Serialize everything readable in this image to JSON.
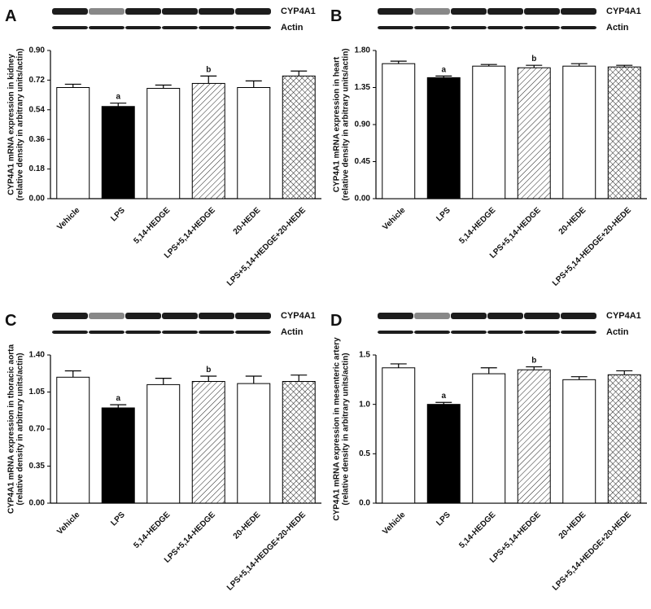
{
  "chart_data": [
    {
      "type": "bar",
      "panel_label": "A",
      "blot_labels": [
        "CYP4A1",
        "Actin"
      ],
      "y_label": [
        "CYP4A1 mRNA expression in kidney",
        "(relative density in arbitrary units/actin)"
      ],
      "categories": [
        "Vehicle",
        "LPS",
        "5,14-HEDGE",
        "LPS+5,14-HEDGE",
        "20-HEDE",
        "LPS+5,14-HEDGE+20-HEDE"
      ],
      "values": [
        0.675,
        0.56,
        0.67,
        0.7,
        0.675,
        0.745
      ],
      "errors": [
        0.02,
        0.02,
        0.02,
        0.045,
        0.04,
        0.03
      ],
      "fills": [
        "white",
        "black",
        "white",
        "hatch",
        "white",
        "crosshatch"
      ],
      "annotations": [
        {
          "text": "a",
          "category": "LPS"
        },
        {
          "text": "b",
          "category": "LPS+5,14-HEDGE"
        }
      ],
      "ylim": [
        0,
        0.9
      ],
      "yticks": [
        {
          "value": 0,
          "label": "0.00"
        },
        0.18,
        0.36,
        0.54,
        0.72,
        {
          "value": 0.9,
          "label": "0.90"
        }
      ]
    },
    {
      "type": "bar",
      "panel_label": "B",
      "blot_labels": [
        "CYP4A1",
        "Actin"
      ],
      "y_label": [
        "CYP4A1 mRNA expression in heart",
        "(relative density in arbitrary units/actin)"
      ],
      "categories": [
        "Vehicle",
        "LPS",
        "5,14-HEDGE",
        "LPS+5,14-HEDGE",
        "20-HEDE",
        "LPS+5,14-HEDGE+20-HEDE"
      ],
      "values": [
        1.64,
        1.47,
        1.61,
        1.59,
        1.61,
        1.6
      ],
      "errors": [
        0.03,
        0.02,
        0.02,
        0.03,
        0.03,
        0.02
      ],
      "fills": [
        "white",
        "black",
        "white",
        "hatch",
        "white",
        "crosshatch"
      ],
      "annotations": [
        {
          "text": "a",
          "category": "LPS"
        },
        {
          "text": "b",
          "category": "LPS+5,14-HEDGE"
        }
      ],
      "ylim": [
        0,
        1.8
      ],
      "yticks": [
        {
          "value": 0,
          "label": "0.00"
        },
        0.45,
        {
          "value": 0.9,
          "label": "0.90"
        },
        1.35,
        {
          "value": 1.8,
          "label": "1.80"
        }
      ]
    },
    {
      "type": "bar",
      "panel_label": "C",
      "blot_labels": [
        "CYP4A1",
        "Actin"
      ],
      "y_label": [
        "CYP4A1 mRNA expression in thoracic aorta",
        "(relative density in arbitrary units/actin)"
      ],
      "categories": [
        "Vehicle",
        "LPS",
        "5,14-HEDGE",
        "LPS+5,14-HEDGE",
        "20-HEDE",
        "LPS+5,14-HEDGE+20-HEDE"
      ],
      "values": [
        1.19,
        0.9,
        1.12,
        1.15,
        1.13,
        1.15
      ],
      "errors": [
        0.06,
        0.03,
        0.06,
        0.05,
        0.07,
        0.06
      ],
      "fills": [
        "white",
        "black",
        "white",
        "hatch",
        "white",
        "crosshatch"
      ],
      "annotations": [
        {
          "text": "a",
          "category": "LPS"
        },
        {
          "text": "b",
          "category": "LPS+5,14-HEDGE"
        }
      ],
      "ylim": [
        0,
        1.4
      ],
      "yticks": [
        {
          "value": 0,
          "label": "0.00"
        },
        0.35,
        {
          "value": 0.7,
          "label": "0.70"
        },
        1.05,
        {
          "value": 1.4,
          "label": "1.40"
        }
      ]
    },
    {
      "type": "bar",
      "panel_label": "D",
      "blot_labels": [
        "CYP4A1",
        "Actin"
      ],
      "y_label": [
        "CYP4A1 mRNA expression in mesenteric artery",
        "(relative density in arbitrary units/actin)"
      ],
      "categories": [
        "Vehicle",
        "LPS",
        "5,14-HEDGE",
        "LPS+5,14-HEDGE",
        "20-HEDE",
        "LPS+5,14-HEDGE+20-HEDE"
      ],
      "values": [
        1.37,
        1.0,
        1.31,
        1.35,
        1.25,
        1.3
      ],
      "errors": [
        0.04,
        0.02,
        0.06,
        0.03,
        0.03,
        0.04
      ],
      "fills": [
        "white",
        "black",
        "white",
        "hatch",
        "white",
        "crosshatch"
      ],
      "annotations": [
        {
          "text": "a",
          "category": "LPS"
        },
        {
          "text": "b",
          "category": "LPS+5,14-HEDGE"
        }
      ],
      "ylim": [
        0,
        1.5
      ],
      "yticks": [
        {
          "value": 0,
          "label": "0.0"
        },
        0.5,
        {
          "value": 1,
          "label": "1.0"
        },
        1.5
      ]
    }
  ]
}
